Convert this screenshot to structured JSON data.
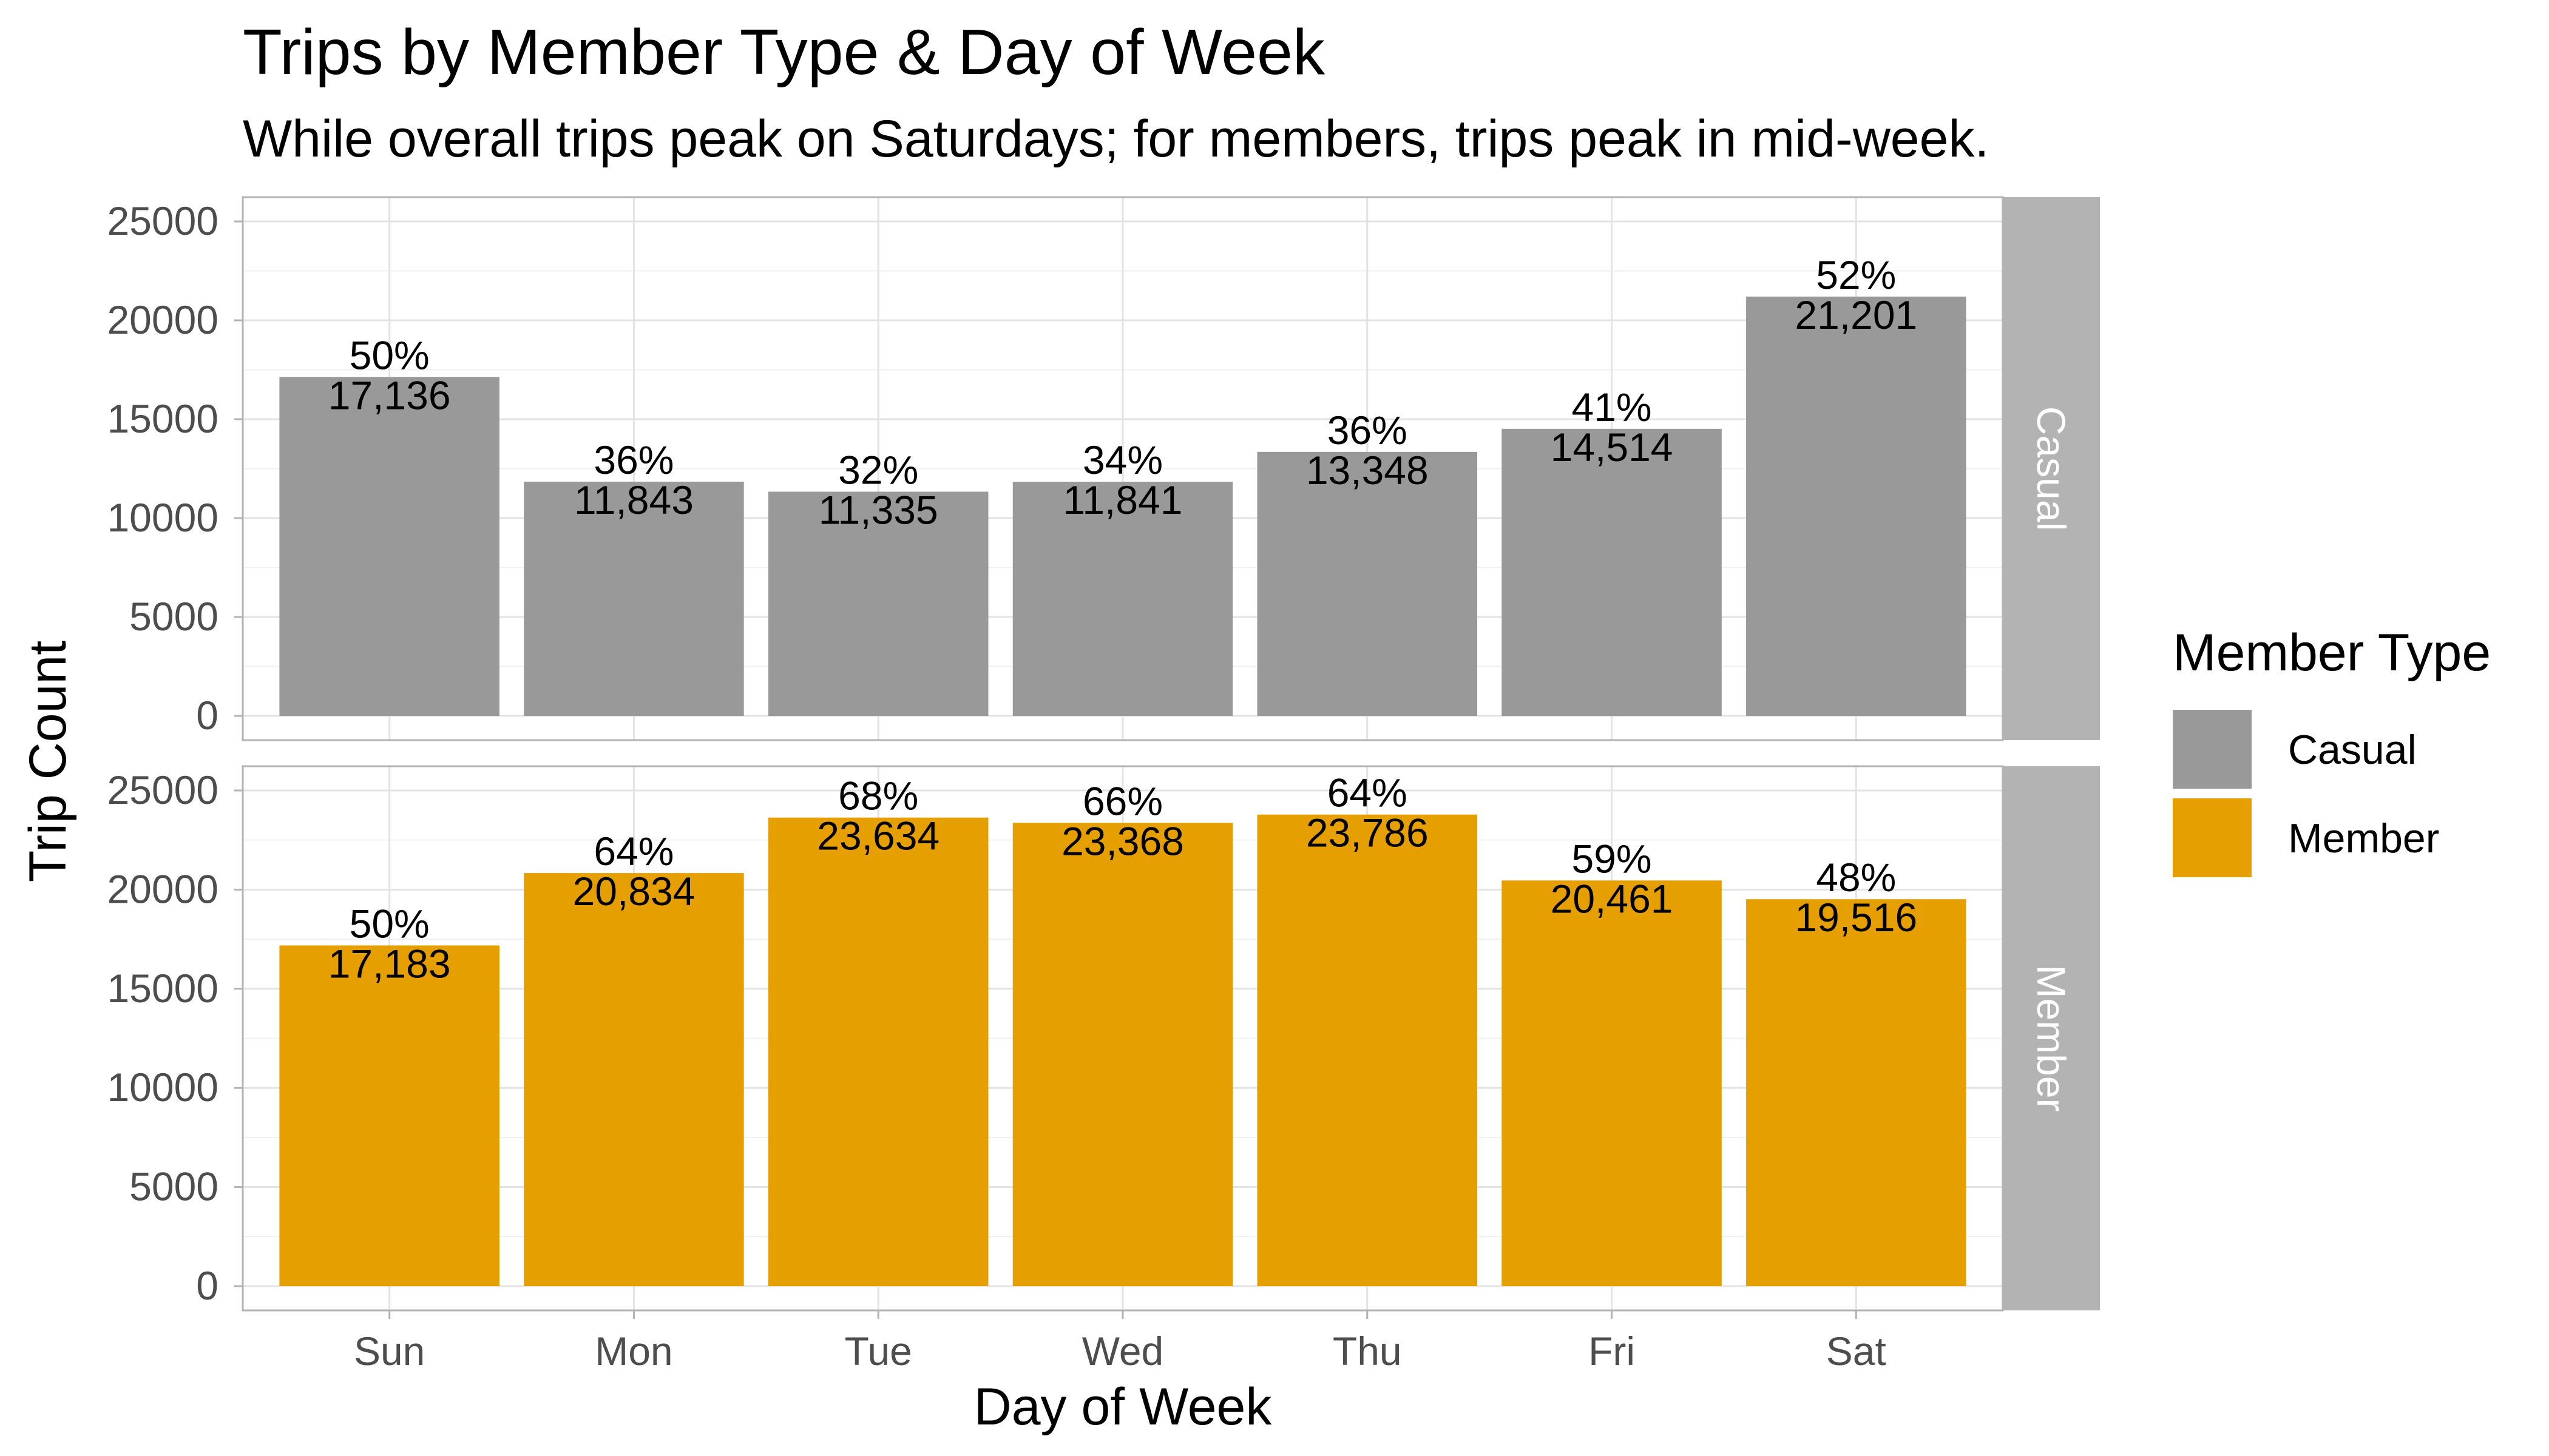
{
  "chart_data": {
    "type": "bar",
    "title": "Trips by Member Type & Day of Week",
    "subtitle": "While overall trips peak on Saturdays; for members, trips peak in mid-week.",
    "xlabel": "Day of Week",
    "ylabel": "Trip Count",
    "categories": [
      "Sun",
      "Mon",
      "Tue",
      "Wed",
      "Thu",
      "Fri",
      "Sat"
    ],
    "ylim": [
      0,
      25000
    ],
    "y_ticks": [
      0,
      5000,
      10000,
      15000,
      20000,
      25000
    ],
    "y_tick_labels": [
      "0",
      "5000",
      "10000",
      "15000",
      "20000",
      "25000"
    ],
    "grid": true,
    "facet": "rows",
    "legend": {
      "title": "Member Type",
      "position": "right"
    },
    "series": [
      {
        "name": "Casual",
        "color": "#999999",
        "values": [
          17136,
          11843,
          11335,
          11841,
          13348,
          14514,
          21201
        ],
        "value_labels": [
          "17,136",
          "11,843",
          "11,335",
          "11,841",
          "13,348",
          "14,514",
          "21,201"
        ],
        "pct_labels": [
          "50%",
          "36%",
          "32%",
          "34%",
          "36%",
          "41%",
          "52%"
        ]
      },
      {
        "name": "Member",
        "color": "#E69F00",
        "values": [
          17183,
          20834,
          23634,
          23368,
          23786,
          20461,
          19516
        ],
        "value_labels": [
          "17,183",
          "20,834",
          "23,634",
          "23,368",
          "23,786",
          "20,461",
          "19,516"
        ],
        "pct_labels": [
          "50%",
          "64%",
          "68%",
          "66%",
          "64%",
          "59%",
          "48%"
        ]
      }
    ],
    "strip_color": "#b3b3b3"
  }
}
